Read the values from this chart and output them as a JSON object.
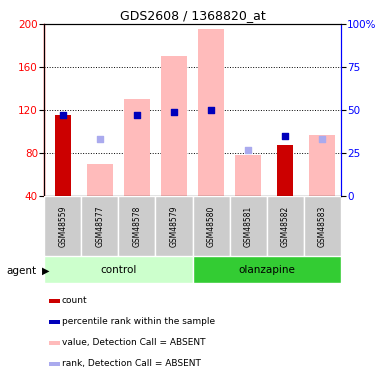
{
  "title": "GDS2608 / 1368820_at",
  "samples": [
    "GSM48559",
    "GSM48577",
    "GSM48578",
    "GSM48579",
    "GSM48580",
    "GSM48581",
    "GSM48582",
    "GSM48583"
  ],
  "groups": [
    "control",
    "control",
    "control",
    "control",
    "olanzapine",
    "olanzapine",
    "olanzapine",
    "olanzapine"
  ],
  "red_bar_values": [
    115,
    0,
    0,
    0,
    0,
    0,
    87,
    0
  ],
  "pink_bar_values": [
    0,
    70,
    130,
    170,
    195,
    78,
    0,
    97
  ],
  "blue_dot_values": [
    47,
    0,
    47,
    49,
    50,
    0,
    35,
    0
  ],
  "light_blue_dot_values": [
    0,
    33,
    0,
    0,
    0,
    27,
    0,
    33
  ],
  "blue_dot_present": [
    true,
    false,
    true,
    true,
    true,
    false,
    true,
    false
  ],
  "light_blue_dot_present": [
    false,
    true,
    false,
    false,
    false,
    true,
    false,
    true
  ],
  "ylim_left": [
    40,
    200
  ],
  "ylim_right": [
    0,
    100
  ],
  "yticks_left": [
    40,
    80,
    120,
    160,
    200
  ],
  "yticks_right": [
    0,
    25,
    50,
    75,
    100
  ],
  "ytick_right_labels": [
    "0",
    "25",
    "50",
    "75",
    "100%"
  ],
  "control_color_light": "#ccffcc",
  "control_color": "#55dd55",
  "olanzapine_color": "#33cc33",
  "red_color": "#cc0000",
  "pink_color": "#ffbbbb",
  "blue_color": "#0000bb",
  "light_blue_color": "#aaaaee",
  "gray_color": "#cccccc",
  "legend_items": [
    {
      "label": "count",
      "color": "#cc0000"
    },
    {
      "label": "percentile rank within the sample",
      "color": "#0000bb"
    },
    {
      "label": "value, Detection Call = ABSENT",
      "color": "#ffbbbb"
    },
    {
      "label": "rank, Detection Call = ABSENT",
      "color": "#aaaaee"
    }
  ]
}
